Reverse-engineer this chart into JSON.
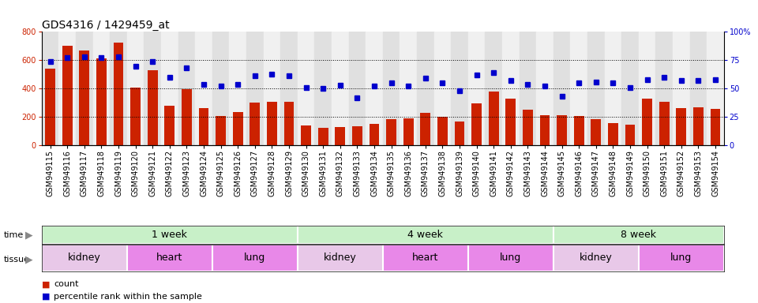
{
  "title": "GDS4316 / 1429459_at",
  "samples": [
    "GSM949115",
    "GSM949116",
    "GSM949117",
    "GSM949118",
    "GSM949119",
    "GSM949120",
    "GSM949121",
    "GSM949122",
    "GSM949123",
    "GSM949124",
    "GSM949125",
    "GSM949126",
    "GSM949127",
    "GSM949128",
    "GSM949129",
    "GSM949130",
    "GSM949131",
    "GSM949132",
    "GSM949133",
    "GSM949134",
    "GSM949135",
    "GSM949136",
    "GSM949137",
    "GSM949138",
    "GSM949139",
    "GSM949140",
    "GSM949141",
    "GSM949142",
    "GSM949143",
    "GSM949144",
    "GSM949145",
    "GSM949146",
    "GSM949147",
    "GSM949148",
    "GSM949149",
    "GSM949150",
    "GSM949151",
    "GSM949152",
    "GSM949153",
    "GSM949154"
  ],
  "counts": [
    540,
    700,
    670,
    615,
    725,
    410,
    530,
    280,
    395,
    265,
    205,
    235,
    300,
    310,
    305,
    140,
    125,
    130,
    135,
    150,
    185,
    190,
    230,
    200,
    170,
    295,
    380,
    330,
    250,
    215,
    215,
    210,
    185,
    160,
    145,
    330,
    310,
    265,
    270,
    255
  ],
  "percentiles": [
    74,
    77,
    78,
    77,
    78,
    70,
    74,
    60,
    68,
    54,
    52,
    54,
    61,
    63,
    61,
    51,
    50,
    53,
    42,
    52,
    55,
    52,
    59,
    55,
    48,
    62,
    64,
    57,
    54,
    52,
    43,
    55,
    56,
    55,
    51,
    58,
    60,
    57,
    57,
    58
  ],
  "bar_color": "#cc2200",
  "dot_color": "#0000cc",
  "ylim_left": [
    0,
    800
  ],
  "ylim_right": [
    0,
    100
  ],
  "yticks_left": [
    0,
    200,
    400,
    600,
    800
  ],
  "yticks_right": [
    0,
    25,
    50,
    75,
    100
  ],
  "yticklabels_right": [
    "0",
    "25",
    "50",
    "75",
    "100%"
  ],
  "grid_values": [
    200,
    400,
    600
  ],
  "time_segments": [
    {
      "label": "1 week",
      "start": 0,
      "end": 14
    },
    {
      "label": "4 week",
      "start": 15,
      "end": 29
    },
    {
      "label": "8 week",
      "start": 30,
      "end": 39
    }
  ],
  "tissue_segments": [
    {
      "label": "kidney",
      "start": 0,
      "end": 4,
      "color": "#e8c8e8"
    },
    {
      "label": "heart",
      "start": 5,
      "end": 9,
      "color": "#e888e8"
    },
    {
      "label": "lung",
      "start": 10,
      "end": 14,
      "color": "#e888e8"
    },
    {
      "label": "kidney",
      "start": 15,
      "end": 19,
      "color": "#e8c8e8"
    },
    {
      "label": "heart",
      "start": 20,
      "end": 24,
      "color": "#e888e8"
    },
    {
      "label": "lung",
      "start": 25,
      "end": 29,
      "color": "#e888e8"
    },
    {
      "label": "kidney",
      "start": 30,
      "end": 34,
      "color": "#e8c8e8"
    },
    {
      "label": "lung",
      "start": 35,
      "end": 39,
      "color": "#e888e8"
    }
  ],
  "time_color": "#c8f0c8",
  "legend_count_label": "count",
  "legend_pct_label": "percentile rank within the sample",
  "time_row_label": "time",
  "tissue_row_label": "tissue",
  "bg_color": "#ffffff",
  "col_even_color": "#e0e0e0",
  "col_odd_color": "#f0f0f0",
  "title_fontsize": 10,
  "tick_label_fontsize": 7,
  "row_label_fontsize": 9,
  "segment_label_fontsize": 9
}
